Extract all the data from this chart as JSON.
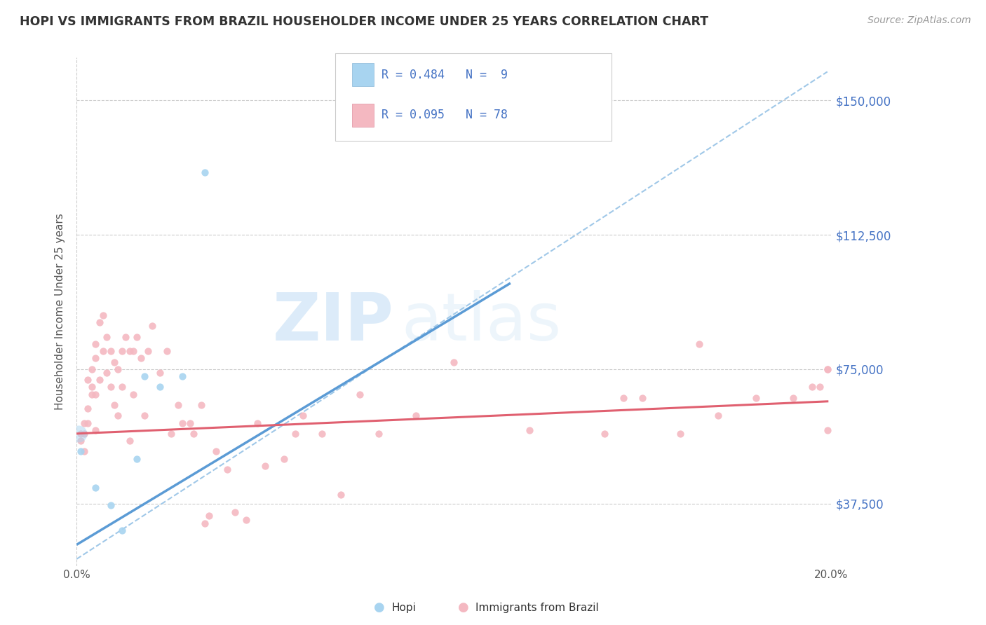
{
  "title": "HOPI VS IMMIGRANTS FROM BRAZIL HOUSEHOLDER INCOME UNDER 25 YEARS CORRELATION CHART",
  "source": "Source: ZipAtlas.com",
  "ylabel": "Householder Income Under 25 years",
  "xlim": [
    0.0,
    0.2
  ],
  "ylim": [
    20000,
    162000
  ],
  "yticks": [
    37500,
    75000,
    112500,
    150000
  ],
  "ytick_labels": [
    "$37,500",
    "$75,000",
    "$112,500",
    "$150,000"
  ],
  "xticks": [
    0.0,
    0.05,
    0.1,
    0.15,
    0.2
  ],
  "xtick_labels": [
    "0.0%",
    "",
    "",
    "",
    "20.0%"
  ],
  "hopi_color": "#a8d4f0",
  "brazil_color": "#f4b8c1",
  "hopi_line_color": "#5b9bd5",
  "brazil_line_color": "#e06070",
  "dashed_line_color": "#a0c8e8",
  "background_color": "#ffffff",
  "watermark_zip": "ZIP",
  "watermark_atlas": "atlas",
  "hopi_scatter_x": [
    0.001,
    0.005,
    0.009,
    0.012,
    0.016,
    0.018,
    0.022,
    0.028,
    0.034
  ],
  "hopi_scatter_y": [
    52000,
    42000,
    37000,
    30000,
    50000,
    73000,
    70000,
    73000,
    130000
  ],
  "brazil_scatter_x": [
    0.001,
    0.001,
    0.002,
    0.002,
    0.002,
    0.003,
    0.003,
    0.003,
    0.004,
    0.004,
    0.004,
    0.005,
    0.005,
    0.005,
    0.005,
    0.006,
    0.006,
    0.007,
    0.007,
    0.008,
    0.008,
    0.009,
    0.009,
    0.01,
    0.01,
    0.011,
    0.011,
    0.012,
    0.012,
    0.013,
    0.014,
    0.014,
    0.015,
    0.015,
    0.016,
    0.017,
    0.018,
    0.019,
    0.02,
    0.022,
    0.024,
    0.025,
    0.027,
    0.028,
    0.03,
    0.031,
    0.033,
    0.034,
    0.035,
    0.037,
    0.04,
    0.042,
    0.045,
    0.048,
    0.05,
    0.055,
    0.058,
    0.06,
    0.065,
    0.07,
    0.075,
    0.08,
    0.09,
    0.1,
    0.12,
    0.14,
    0.145,
    0.15,
    0.16,
    0.165,
    0.17,
    0.18,
    0.19,
    0.195,
    0.197,
    0.199,
    0.199,
    0.199
  ],
  "brazil_scatter_y": [
    57000,
    55000,
    60000,
    57000,
    52000,
    72000,
    64000,
    60000,
    75000,
    70000,
    68000,
    82000,
    78000,
    68000,
    58000,
    88000,
    72000,
    90000,
    80000,
    84000,
    74000,
    80000,
    70000,
    77000,
    65000,
    75000,
    62000,
    80000,
    70000,
    84000,
    55000,
    80000,
    80000,
    68000,
    84000,
    78000,
    62000,
    80000,
    87000,
    74000,
    80000,
    57000,
    65000,
    60000,
    60000,
    57000,
    65000,
    32000,
    34000,
    52000,
    47000,
    35000,
    33000,
    60000,
    48000,
    50000,
    57000,
    62000,
    57000,
    40000,
    68000,
    57000,
    62000,
    77000,
    58000,
    57000,
    67000,
    67000,
    57000,
    82000,
    62000,
    67000,
    67000,
    70000,
    70000,
    75000,
    58000,
    75000
  ],
  "hopi_trend_x": [
    0.0,
    0.115
  ],
  "hopi_trend_y": [
    26000,
    99000
  ],
  "brazil_trend_x": [
    0.0,
    0.199
  ],
  "brazil_trend_y": [
    57000,
    66000
  ],
  "dashed_trend_x": [
    0.0,
    0.199
  ],
  "dashed_trend_y": [
    22000,
    158000
  ]
}
